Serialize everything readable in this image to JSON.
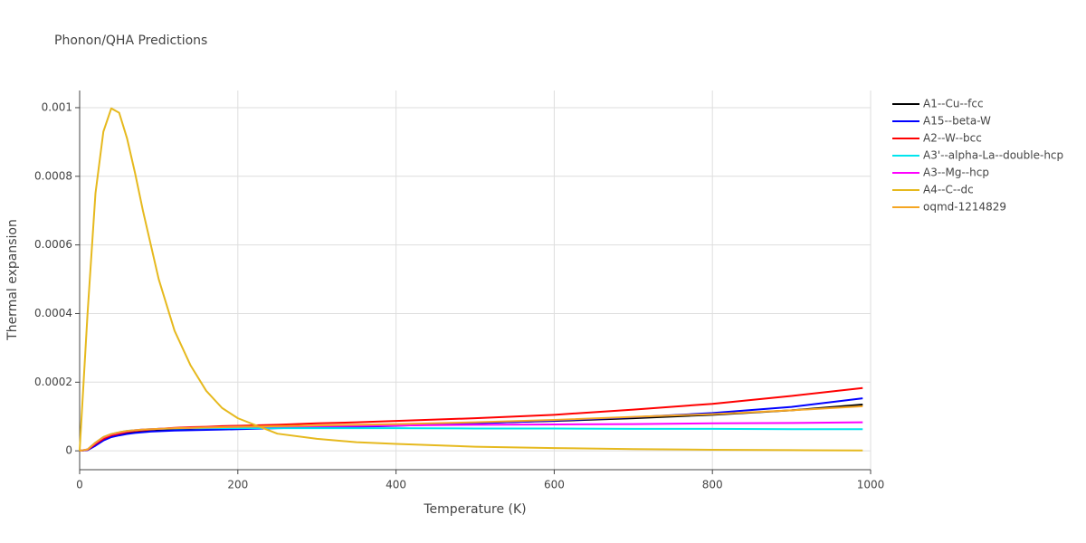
{
  "chart_data": {
    "type": "line",
    "title": "Phonon/QHA Predictions",
    "x_label": "Temperature (K)",
    "y_label": "Thermal expansion",
    "xlim": [
      0,
      1000
    ],
    "ylim": [
      -5.5e-05,
      0.00105
    ],
    "xticks": [
      0,
      200,
      400,
      600,
      800,
      1000
    ],
    "yticks": [
      0,
      0.0002,
      0.0004,
      0.0006,
      0.0008,
      0.001
    ],
    "grid": true,
    "legend": "right",
    "x": [
      0,
      10,
      20,
      30,
      40,
      50,
      60,
      70,
      80,
      90,
      100,
      120,
      140,
      160,
      180,
      200,
      250,
      300,
      350,
      400,
      500,
      600,
      700,
      800,
      900,
      990
    ],
    "series": [
      {
        "name": "A1--Cu--fcc",
        "color": "#000000",
        "values": [
          0,
          3e-06,
          2e-05,
          3.4e-05,
          4.3e-05,
          4.9e-05,
          5.3e-05,
          5.6e-05,
          5.8e-05,
          6e-05,
          6.1e-05,
          6.3e-05,
          6.5e-05,
          6.6e-05,
          6.7e-05,
          6.8e-05,
          7e-05,
          7.2e-05,
          7.4e-05,
          7.6e-05,
          8.1e-05,
          8.7e-05,
          9.5e-05,
          0.000105,
          0.000118,
          0.000135
        ]
      },
      {
        "name": "A15--beta-W",
        "color": "#0000ff",
        "values": [
          0,
          2e-06,
          1.5e-05,
          3e-05,
          4e-05,
          4.5e-05,
          4.9e-05,
          5.2e-05,
          5.4e-05,
          5.6e-05,
          5.7e-05,
          5.9e-05,
          6e-05,
          6.1e-05,
          6.2e-05,
          6.3e-05,
          6.6e-05,
          6.8e-05,
          7e-05,
          7.3e-05,
          8e-05,
          8.8e-05,
          9.8e-05,
          0.00011,
          0.000128,
          0.000153
        ]
      },
      {
        "name": "A2--W--bcc",
        "color": "#ff0000",
        "values": [
          0,
          3e-06,
          2e-05,
          3.5e-05,
          4.5e-05,
          5e-05,
          5.5e-05,
          5.8e-05,
          6e-05,
          6.2e-05,
          6.4e-05,
          6.7e-05,
          6.9e-05,
          7e-05,
          7.2e-05,
          7.3e-05,
          7.6e-05,
          8e-05,
          8.3e-05,
          8.7e-05,
          9.5e-05,
          0.000105,
          0.00012,
          0.000137,
          0.00016,
          0.000183
        ]
      },
      {
        "name": "A3'--alpha-La--double-hcp",
        "color": "#00e5ee",
        "values": [
          0,
          4e-06,
          2.4e-05,
          4e-05,
          4.9e-05,
          5.4e-05,
          5.8e-05,
          6e-05,
          6.2e-05,
          6.3e-05,
          6.4e-05,
          6.5e-05,
          6.6e-05,
          6.6e-05,
          6.6e-05,
          6.6e-05,
          6.6e-05,
          6.6e-05,
          6.6e-05,
          6.6e-05,
          6.5e-05,
          6.5e-05,
          6.4e-05,
          6.4e-05,
          6.3e-05,
          6.3e-05
        ]
      },
      {
        "name": "A3--Mg--hcp",
        "color": "#ff00ff",
        "values": [
          0,
          4e-06,
          2.3e-05,
          3.9e-05,
          4.8e-05,
          5.3e-05,
          5.7e-05,
          6e-05,
          6.2e-05,
          6.3e-05,
          6.4e-05,
          6.6e-05,
          6.7e-05,
          6.8e-05,
          6.9e-05,
          7e-05,
          7.1e-05,
          7.2e-05,
          7.3e-05,
          7.4e-05,
          7.6e-05,
          7.7e-05,
          7.8e-05,
          8e-05,
          8.1e-05,
          8.3e-05
        ]
      },
      {
        "name": "A4--C--dc",
        "color": "#e6b91e",
        "values": [
          0,
          0.0004,
          0.00075,
          0.00093,
          0.000998,
          0.000985,
          0.00091,
          0.00081,
          0.0007,
          0.0006,
          0.0005,
          0.00035,
          0.00025,
          0.000175,
          0.000125,
          9.5e-05,
          5e-05,
          3.5e-05,
          2.5e-05,
          2e-05,
          1.2e-05,
          8e-06,
          5e-06,
          3e-06,
          2e-06,
          1e-06
        ]
      },
      {
        "name": "oqmd-1214829",
        "color": "#f5a623",
        "values": [
          0,
          4e-06,
          2.4e-05,
          4e-05,
          4.9e-05,
          5.4e-05,
          5.8e-05,
          6e-05,
          6.2e-05,
          6.3e-05,
          6.4e-05,
          6.6e-05,
          6.7e-05,
          6.8e-05,
          6.9e-05,
          7e-05,
          7.2e-05,
          7.4e-05,
          7.6e-05,
          7.8e-05,
          8.3e-05,
          9e-05,
          9.9e-05,
          0.000107,
          0.000118,
          0.00013
        ]
      }
    ]
  }
}
